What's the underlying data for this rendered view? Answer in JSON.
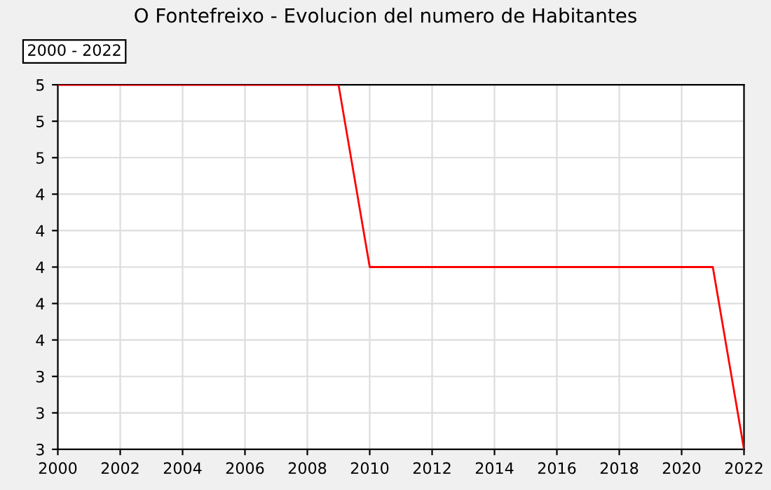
{
  "chart_data": {
    "type": "line",
    "title": "O Fontefreixo - Evolucion del numero de Habitantes",
    "annotations": [
      "2000 - 2022"
    ],
    "x": [
      2000,
      2001,
      2002,
      2003,
      2004,
      2005,
      2006,
      2007,
      2008,
      2009,
      2010,
      2011,
      2012,
      2013,
      2014,
      2015,
      2016,
      2017,
      2018,
      2019,
      2020,
      2021,
      2022
    ],
    "series": [
      {
        "color": "#ff0000",
        "values": [
          5,
          5,
          5,
          5,
          5,
          5,
          5,
          5,
          5,
          5,
          4,
          4,
          4,
          4,
          4,
          4,
          4,
          4,
          4,
          4,
          4,
          4,
          3
        ]
      }
    ],
    "xlim": [
      2000,
      2022
    ],
    "xticks": [
      2000,
      2002,
      2004,
      2006,
      2008,
      2010,
      2012,
      2014,
      2016,
      2018,
      2020,
      2022
    ],
    "ylim": [
      3,
      5
    ],
    "yticks": [
      {
        "value": 3.0,
        "label": "3"
      },
      {
        "value": 3.2,
        "label": "3"
      },
      {
        "value": 3.4,
        "label": "3"
      },
      {
        "value": 3.6,
        "label": "4"
      },
      {
        "value": 3.8,
        "label": "4"
      },
      {
        "value": 4.0,
        "label": "4"
      },
      {
        "value": 4.2,
        "label": "4"
      },
      {
        "value": 4.4,
        "label": "4"
      },
      {
        "value": 4.6,
        "label": "5"
      },
      {
        "value": 4.8,
        "label": "5"
      },
      {
        "value": 5.0,
        "label": "5"
      }
    ],
    "grid": true,
    "marker": "none",
    "line_style": "solid",
    "legend": false
  }
}
